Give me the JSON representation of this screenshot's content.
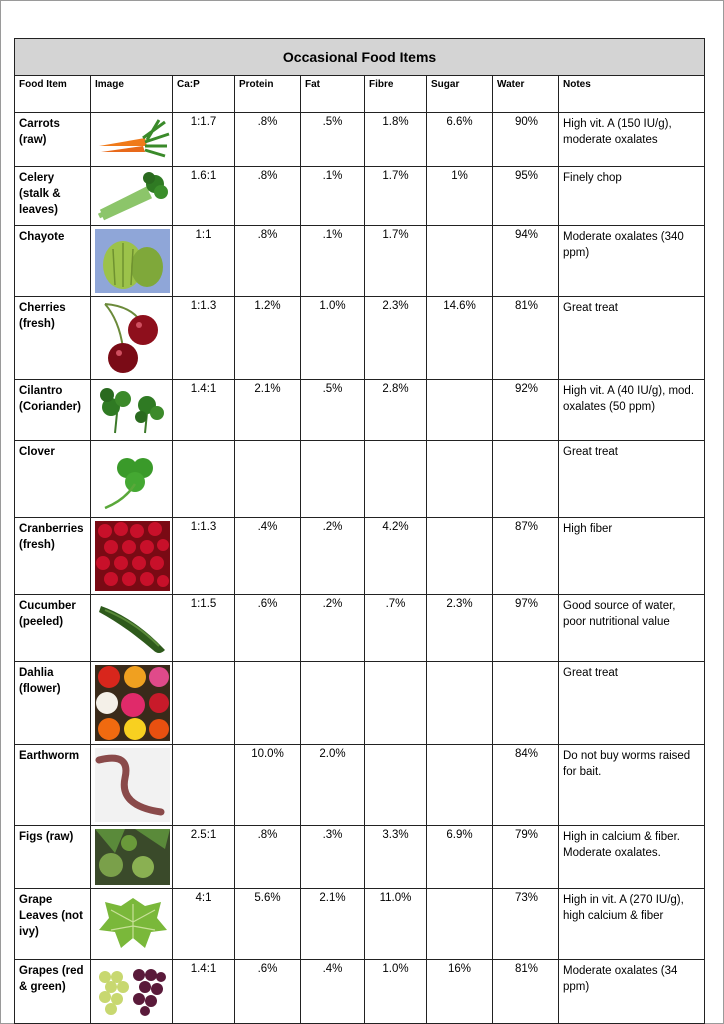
{
  "title": "Occasional Food Items",
  "headers": {
    "food": "Food Item",
    "image": "Image",
    "cap": "Ca:P",
    "protein": "Protein",
    "fat": "Fat",
    "fibre": "Fibre",
    "sugar": "Sugar",
    "water": "Water",
    "notes": "Notes"
  },
  "rows": [
    {
      "name": "Carrots (raw)",
      "image_icon": "carrot-icon",
      "cap": "1:1.7",
      "protein": ".8%",
      "fat": ".5%",
      "fibre": "1.8%",
      "sugar": "6.6%",
      "water": "90%",
      "notes": "High vit. A (150 IU/g), moderate oxalates"
    },
    {
      "name": "Celery (stalk & leaves)",
      "image_icon": "celery-icon",
      "cap": "1.6:1",
      "protein": ".8%",
      "fat": ".1%",
      "fibre": "1.7%",
      "sugar": "1%",
      "water": "95%",
      "notes": "Finely chop"
    },
    {
      "name": "Chayote",
      "image_icon": "chayote-icon",
      "cap": "1:1",
      "protein": ".8%",
      "fat": ".1%",
      "fibre": "1.7%",
      "sugar": "",
      "water": "94%",
      "notes": "Moderate oxalates (340 ppm)"
    },
    {
      "name": "Cherries (fresh)",
      "image_icon": "cherries-icon",
      "cap": "1:1.3",
      "protein": "1.2%",
      "fat": "1.0%",
      "fibre": "2.3%",
      "sugar": "14.6%",
      "water": "81%",
      "notes": "Great treat"
    },
    {
      "name": "Cilantro (Coriander)",
      "image_icon": "cilantro-icon",
      "cap": "1.4:1",
      "protein": "2.1%",
      "fat": ".5%",
      "fibre": "2.8%",
      "sugar": "",
      "water": "92%",
      "notes": "High vit. A (40 IU/g), mod. oxalates (50 ppm)"
    },
    {
      "name": "Clover",
      "image_icon": "clover-icon",
      "cap": "",
      "protein": "",
      "fat": "",
      "fibre": "",
      "sugar": "",
      "water": "",
      "notes": "Great treat"
    },
    {
      "name": "Cranberries (fresh)",
      "image_icon": "cranberries-icon",
      "cap": "1:1.3",
      "protein": ".4%",
      "fat": ".2%",
      "fibre": "4.2%",
      "sugar": "",
      "water": "87%",
      "notes": "High fiber"
    },
    {
      "name": "Cucumber (peeled)",
      "image_icon": "cucumber-icon",
      "cap": "1:1.5",
      "protein": ".6%",
      "fat": ".2%",
      "fibre": ".7%",
      "sugar": "2.3%",
      "water": "97%",
      "notes": "Good source of water, poor nutritional value"
    },
    {
      "name": "Dahlia (flower)",
      "image_icon": "dahlia-icon",
      "cap": "",
      "protein": "",
      "fat": "",
      "fibre": "",
      "sugar": "",
      "water": "",
      "notes": "Great treat"
    },
    {
      "name": "Earthworm",
      "image_icon": "earthworm-icon",
      "cap": "",
      "protein": "10.0%",
      "fat": "2.0%",
      "fibre": "",
      "sugar": "",
      "water": "84%",
      "notes": "Do not buy worms raised for bait."
    },
    {
      "name": "Figs (raw)",
      "image_icon": "figs-icon",
      "cap": "2.5:1",
      "protein": ".8%",
      "fat": ".3%",
      "fibre": "3.3%",
      "sugar": "6.9%",
      "water": "79%",
      "notes": "High in calcium & fiber. Moderate oxalates."
    },
    {
      "name": "Grape Leaves (not ivy)",
      "image_icon": "grape-leaf-icon",
      "cap": "4:1",
      "protein": "5.6%",
      "fat": "2.1%",
      "fibre": "11.0%",
      "sugar": "",
      "water": "73%",
      "notes": "High in vit. A (270 IU/g), high calcium & fiber"
    },
    {
      "name": "Grapes (red & green)",
      "image_icon": "grapes-icon",
      "cap": "1.4:1",
      "protein": ".6%",
      "fat": ".4%",
      "fibre": "1.0%",
      "sugar": "16%",
      "water": "81%",
      "notes": "Moderate oxalates (34 ppm)"
    }
  ]
}
